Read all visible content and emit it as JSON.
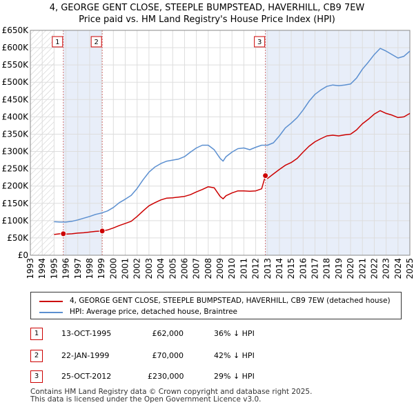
{
  "title_line1": "4, GEORGE GENT CLOSE, STEEPLE BUMPSTEAD, HAVERHILL, CB9 7EW",
  "title_line2": "Price paid vs. HM Land Registry's House Price Index (HPI)",
  "chart_data": {
    "type": "line",
    "title": "4, GEORGE GENT CLOSE, STEEPLE BUMPSTEAD, HAVERHILL, CB9 7EW — Price paid vs. HM Land Registry's House Price Index (HPI)",
    "xlabel": "",
    "ylabel": "",
    "xlim": [
      1993,
      2025
    ],
    "ylim": [
      0,
      650000
    ],
    "y_ticks": [
      0,
      50000,
      100000,
      150000,
      200000,
      250000,
      300000,
      350000,
      400000,
      450000,
      500000,
      550000,
      600000,
      650000
    ],
    "y_tick_labels": [
      "£0",
      "£50K",
      "£100K",
      "£150K",
      "£200K",
      "£250K",
      "£300K",
      "£350K",
      "£400K",
      "£450K",
      "£500K",
      "£550K",
      "£600K",
      "£650K"
    ],
    "x_ticks": [
      1993,
      1994,
      1995,
      1996,
      1997,
      1998,
      1999,
      2000,
      2001,
      2002,
      2003,
      2004,
      2005,
      2006,
      2007,
      2008,
      2009,
      2010,
      2011,
      2012,
      2013,
      2014,
      2015,
      2016,
      2017,
      2018,
      2019,
      2020,
      2021,
      2022,
      2023,
      2024,
      2025
    ],
    "x_tick_labels": [
      "1993",
      "1994",
      "1995",
      "1996",
      "1997",
      "1998",
      "1999",
      "2000",
      "2001",
      "2002",
      "2003",
      "2004",
      "2005",
      "2006",
      "2007",
      "2008",
      "2009",
      "2010",
      "2011",
      "2012",
      "2013",
      "2014",
      "2015",
      "2016",
      "2017",
      "2018",
      "2019",
      "2020",
      "2021",
      "2022",
      "2023",
      "2024",
      "2025"
    ],
    "grid": true,
    "hatched_x_ranges": [
      [
        1993,
        1995.0
      ],
      [
        2025.0,
        2025.0
      ]
    ],
    "shaded_x_ranges": [
      [
        1995.78,
        1999.06
      ],
      [
        2012.82,
        2025.0
      ]
    ],
    "series": [
      {
        "name": "4, GEORGE GENT CLOSE, STEEPLE BUMPSTEAD, HAVERHILL, CB9 7EW (detached house)",
        "color": "#cc0000",
        "x": [
          1995.0,
          1995.5,
          1995.78,
          1996.0,
          1996.5,
          1997.0,
          1997.5,
          1998.0,
          1998.5,
          1999.06,
          1999.5,
          2000.0,
          2000.5,
          2001.0,
          2001.5,
          2002.0,
          2002.5,
          2003.0,
          2003.5,
          2004.0,
          2004.5,
          2005.0,
          2005.5,
          2006.0,
          2006.5,
          2007.0,
          2007.5,
          2008.0,
          2008.5,
          2009.0,
          2009.25,
          2009.5,
          2010.0,
          2010.5,
          2011.0,
          2011.5,
          2012.0,
          2012.5,
          2012.82,
          2013.0,
          2013.5,
          2014.0,
          2014.5,
          2015.0,
          2015.5,
          2016.0,
          2016.5,
          2017.0,
          2017.5,
          2018.0,
          2018.5,
          2019.0,
          2019.5,
          2020.0,
          2020.5,
          2021.0,
          2021.5,
          2022.0,
          2022.5,
          2023.0,
          2023.5,
          2024.0,
          2024.5,
          2025.0
        ],
        "values": [
          60000,
          62000,
          62000,
          61000,
          62000,
          64000,
          65000,
          67000,
          69000,
          70000,
          73000,
          79000,
          86000,
          92000,
          98000,
          112000,
          128000,
          143000,
          152000,
          160000,
          165000,
          166000,
          168000,
          170000,
          175000,
          183000,
          190000,
          198000,
          195000,
          170000,
          163000,
          172000,
          180000,
          186000,
          186000,
          185000,
          186000,
          192000,
          230000,
          222000,
          235000,
          248000,
          260000,
          268000,
          280000,
          298000,
          315000,
          328000,
          337000,
          345000,
          347000,
          345000,
          348000,
          350000,
          362000,
          380000,
          393000,
          408000,
          418000,
          410000,
          405000,
          398000,
          400000,
          410000
        ]
      },
      {
        "name": "HPI: Average price, detached house, Braintree",
        "color": "#5b8fd0",
        "x": [
          1995.0,
          1995.5,
          1996.0,
          1996.5,
          1997.0,
          1997.5,
          1998.0,
          1998.5,
          1999.0,
          1999.5,
          2000.0,
          2000.5,
          2001.0,
          2001.5,
          2002.0,
          2002.5,
          2003.0,
          2003.5,
          2004.0,
          2004.5,
          2005.0,
          2005.5,
          2006.0,
          2006.5,
          2007.0,
          2007.5,
          2008.0,
          2008.5,
          2009.0,
          2009.25,
          2009.5,
          2010.0,
          2010.5,
          2011.0,
          2011.5,
          2012.0,
          2012.5,
          2013.0,
          2013.5,
          2014.0,
          2014.5,
          2015.0,
          2015.5,
          2016.0,
          2016.5,
          2017.0,
          2017.5,
          2018.0,
          2018.5,
          2019.0,
          2019.5,
          2020.0,
          2020.5,
          2021.0,
          2021.5,
          2022.0,
          2022.5,
          2023.0,
          2023.5,
          2024.0,
          2024.5,
          2025.0
        ],
        "values": [
          97000,
          96000,
          96000,
          98000,
          102000,
          107000,
          112000,
          118000,
          122000,
          128000,
          138000,
          152000,
          162000,
          173000,
          193000,
          218000,
          240000,
          255000,
          265000,
          272000,
          275000,
          278000,
          285000,
          298000,
          310000,
          318000,
          318000,
          305000,
          280000,
          272000,
          285000,
          298000,
          308000,
          310000,
          305000,
          312000,
          318000,
          318000,
          325000,
          345000,
          368000,
          382000,
          398000,
          420000,
          445000,
          465000,
          478000,
          488000,
          492000,
          490000,
          492000,
          495000,
          512000,
          538000,
          558000,
          580000,
          598000,
          590000,
          580000,
          570000,
          575000,
          590000
        ]
      }
    ],
    "sales": [
      {
        "label": "1",
        "x": 1995.78,
        "value": 62000
      },
      {
        "label": "2",
        "x": 1999.06,
        "value": 70000
      },
      {
        "label": "3",
        "x": 2012.82,
        "value": 230000
      }
    ]
  },
  "legend": {
    "item1": "4, GEORGE GENT CLOSE, STEEPLE BUMPSTEAD, HAVERHILL, CB9 7EW (detached house)",
    "item2": "HPI: Average price, detached house, Braintree",
    "item1_color": "#cc0000",
    "item2_color": "#5b8fd0"
  },
  "sales_table": [
    {
      "num": "1",
      "date": "13-OCT-1995",
      "price": "£62,000",
      "hpi": "36% ↓ HPI"
    },
    {
      "num": "2",
      "date": "22-JAN-1999",
      "price": "£70,000",
      "hpi": "42% ↓ HPI"
    },
    {
      "num": "3",
      "date": "25-OCT-2012",
      "price": "£230,000",
      "hpi": "29% ↓ HPI"
    }
  ],
  "footer_line1": "Contains HM Land Registry data © Crown copyright and database right 2025.",
  "footer_line2": "This data is licensed under the Open Government Licence v3.0."
}
